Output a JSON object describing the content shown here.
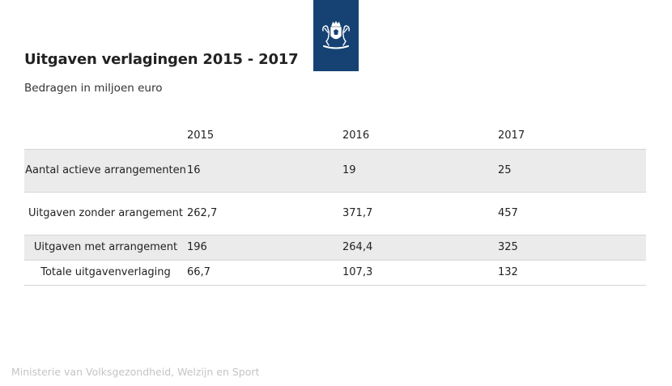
{
  "logo": {
    "icon": "rijksoverheid-coat-of-arms-icon",
    "background": "#154273"
  },
  "title": "Uitgaven verlagingen 2015 - 2017",
  "subtitle": "Bedragen in miljoen euro",
  "footer": "Ministerie van Volksgezondheid, Welzijn en Sport",
  "chart_data": {
    "type": "table",
    "title": "Uitgaven verlagingen 2015 - 2017",
    "subtitle": "Bedragen in miljoen euro",
    "columns": [
      "",
      "2015",
      "2016",
      "2017"
    ],
    "rows": [
      {
        "label": "Aantal actieve arrangementen",
        "values": [
          "16",
          "19",
          "25"
        ]
      },
      {
        "label": "Uitgaven zonder arangement",
        "values": [
          "262,7",
          "371,7",
          "457"
        ]
      },
      {
        "label": "Uitgaven met arrangement",
        "values": [
          "196",
          "264,4",
          "325"
        ]
      },
      {
        "label": "Totale uitgavenverlaging",
        "values": [
          "66,7",
          "107,3",
          "132"
        ]
      }
    ]
  }
}
